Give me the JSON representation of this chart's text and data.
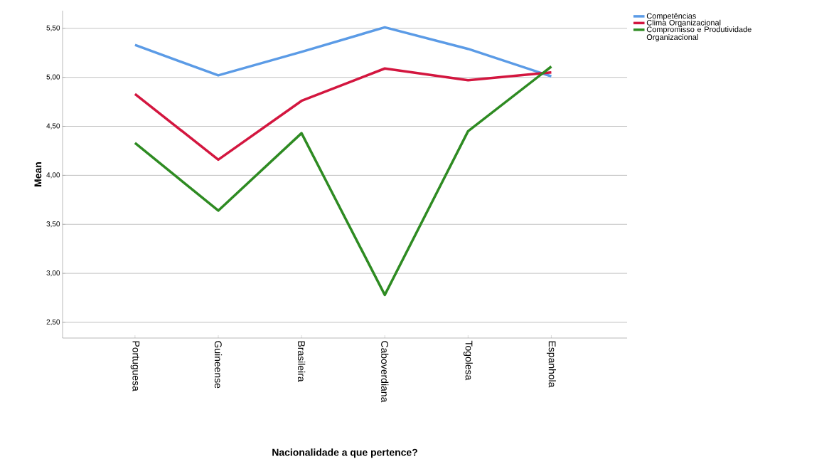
{
  "chart_data": {
    "type": "line",
    "xlabel": "Nacionalidade a que pertence?",
    "ylabel": "Mean",
    "categories": [
      "Portuguesa",
      "Guineense",
      "Brasileira",
      "Caboverdiana",
      "Togolesa",
      "Espanhola"
    ],
    "series": [
      {
        "name": "Competências",
        "color": "#5b9be6",
        "values": [
          5.33,
          5.02,
          5.26,
          5.51,
          5.29,
          5.01
        ]
      },
      {
        "name": "Clima Organizacional",
        "color": "#d3163f",
        "values": [
          4.83,
          4.16,
          4.76,
          5.09,
          4.97,
          5.05
        ]
      },
      {
        "name": "Compromisso e Produtividade Organizacional",
        "color": "#2e8b22",
        "values": [
          4.33,
          3.64,
          4.43,
          2.78,
          4.45,
          5.11
        ]
      }
    ],
    "ylim": [
      2.34,
      5.68
    ],
    "yticks": [
      {
        "value": 2.5,
        "label": "2,50"
      },
      {
        "value": 3.0,
        "label": "3,00"
      },
      {
        "value": 3.5,
        "label": "3,50"
      },
      {
        "value": 4.0,
        "label": "4,00"
      },
      {
        "value": 4.5,
        "label": "4,50"
      },
      {
        "value": 5.0,
        "label": "5,00"
      },
      {
        "value": 5.5,
        "label": "5,50"
      }
    ],
    "grid": "y",
    "legend": "top right",
    "marker": "none",
    "line_style": "solid"
  }
}
